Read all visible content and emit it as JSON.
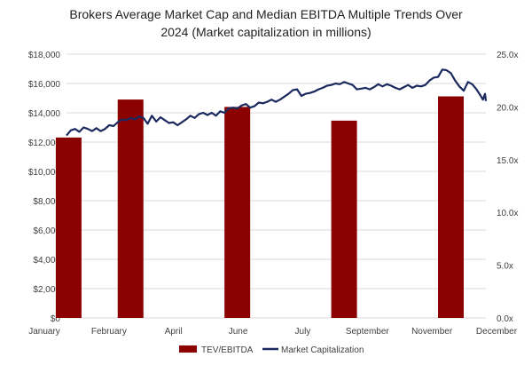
{
  "chart_data": {
    "type": "bar+line",
    "title_lines": [
      "Brokers Average Market Cap and Median EBITDA Multiple Trends Over",
      "2024  (Market capitalization in millions)"
    ],
    "x_ticks": [
      "January",
      "February",
      "April",
      "June",
      "July",
      "September",
      "November",
      "December"
    ],
    "y_left": {
      "min": 0,
      "max": 18000,
      "step": 2000,
      "ticks": [
        "$0",
        "$2,000",
        "$4,000",
        "$6,000",
        "$8,000",
        "$10,000",
        "$12,000",
        "$14,000",
        "$16,000",
        "$18,000"
      ]
    },
    "y_right": {
      "min": 0,
      "max": 25,
      "step": 5,
      "ticks": [
        "0.0x",
        "5.0x",
        "10.0x",
        "15.0x",
        "20.0x",
        "25.0x"
      ]
    },
    "bar_series": {
      "name": "TEV/EBITDA",
      "color": "#8B0000",
      "points": [
        {
          "x": 0.05,
          "value": 17.1
        },
        {
          "x": 1.5,
          "value": 20.7
        },
        {
          "x": 4.0,
          "value": 20.0
        },
        {
          "x": 6.5,
          "value": 18.7
        },
        {
          "x": 9.0,
          "value": 21.0
        }
      ]
    },
    "line_series": {
      "name": "Market Capitalization",
      "color": "#1B2A5E",
      "points": [
        [
          0.0,
          12450
        ],
        [
          0.1,
          12800
        ],
        [
          0.2,
          12900
        ],
        [
          0.3,
          12700
        ],
        [
          0.4,
          13000
        ],
        [
          0.5,
          12900
        ],
        [
          0.6,
          12750
        ],
        [
          0.7,
          12950
        ],
        [
          0.8,
          12750
        ],
        [
          0.9,
          12900
        ],
        [
          1.0,
          13150
        ],
        [
          1.1,
          13100
        ],
        [
          1.2,
          13350
        ],
        [
          1.3,
          13550
        ],
        [
          1.4,
          13500
        ],
        [
          1.5,
          13650
        ],
        [
          1.6,
          13550
        ],
        [
          1.7,
          13750
        ],
        [
          1.8,
          13650
        ],
        [
          1.9,
          13250
        ],
        [
          2.0,
          13800
        ],
        [
          2.1,
          13400
        ],
        [
          2.2,
          13700
        ],
        [
          2.3,
          13500
        ],
        [
          2.4,
          13300
        ],
        [
          2.5,
          13350
        ],
        [
          2.6,
          13150
        ],
        [
          2.7,
          13350
        ],
        [
          2.8,
          13550
        ],
        [
          2.9,
          13800
        ],
        [
          3.0,
          13650
        ],
        [
          3.1,
          13900
        ],
        [
          3.2,
          14000
        ],
        [
          3.3,
          13850
        ],
        [
          3.4,
          14000
        ],
        [
          3.5,
          13800
        ],
        [
          3.6,
          14100
        ],
        [
          3.7,
          14000
        ],
        [
          3.8,
          14300
        ],
        [
          3.9,
          14350
        ],
        [
          4.0,
          14300
        ],
        [
          4.1,
          14500
        ],
        [
          4.2,
          14600
        ],
        [
          4.3,
          14350
        ],
        [
          4.4,
          14450
        ],
        [
          4.5,
          14700
        ],
        [
          4.6,
          14650
        ],
        [
          4.7,
          14750
        ],
        [
          4.8,
          14900
        ],
        [
          4.9,
          14750
        ],
        [
          5.0,
          14900
        ],
        [
          5.1,
          15100
        ],
        [
          5.2,
          15300
        ],
        [
          5.3,
          15550
        ],
        [
          5.4,
          15600
        ],
        [
          5.5,
          15150
        ],
        [
          5.6,
          15300
        ],
        [
          5.7,
          15350
        ],
        [
          5.8,
          15450
        ],
        [
          5.9,
          15600
        ],
        [
          6.0,
          15700
        ],
        [
          6.1,
          15850
        ],
        [
          6.2,
          15900
        ],
        [
          6.3,
          16000
        ],
        [
          6.4,
          15950
        ],
        [
          6.5,
          16100
        ],
        [
          6.6,
          16000
        ],
        [
          6.7,
          15900
        ],
        [
          6.8,
          15600
        ],
        [
          6.9,
          15650
        ],
        [
          7.0,
          15700
        ],
        [
          7.1,
          15600
        ],
        [
          7.2,
          15750
        ],
        [
          7.3,
          15950
        ],
        [
          7.4,
          15800
        ],
        [
          7.5,
          15950
        ],
        [
          7.6,
          15850
        ],
        [
          7.7,
          15700
        ],
        [
          7.8,
          15600
        ],
        [
          7.9,
          15750
        ],
        [
          8.0,
          15900
        ],
        [
          8.1,
          15700
        ],
        [
          8.2,
          15850
        ],
        [
          8.3,
          15800
        ],
        [
          8.4,
          15900
        ],
        [
          8.5,
          16200
        ],
        [
          8.6,
          16400
        ],
        [
          8.7,
          16450
        ],
        [
          8.8,
          16950
        ],
        [
          8.9,
          16900
        ],
        [
          9.0,
          16700
        ],
        [
          9.1,
          16200
        ],
        [
          9.2,
          15800
        ],
        [
          9.3,
          15500
        ],
        [
          9.4,
          16100
        ],
        [
          9.5,
          15950
        ],
        [
          9.6,
          15600
        ],
        [
          9.7,
          15150
        ],
        [
          9.75,
          14900
        ],
        [
          9.8,
          15300
        ],
        [
          9.82,
          14800
        ]
      ]
    },
    "x_range": [
      0,
      9.82
    ],
    "legend": {
      "position": "bottom",
      "items": [
        "TEV/EBITDA",
        "Market Capitalization"
      ]
    },
    "grid": true
  }
}
